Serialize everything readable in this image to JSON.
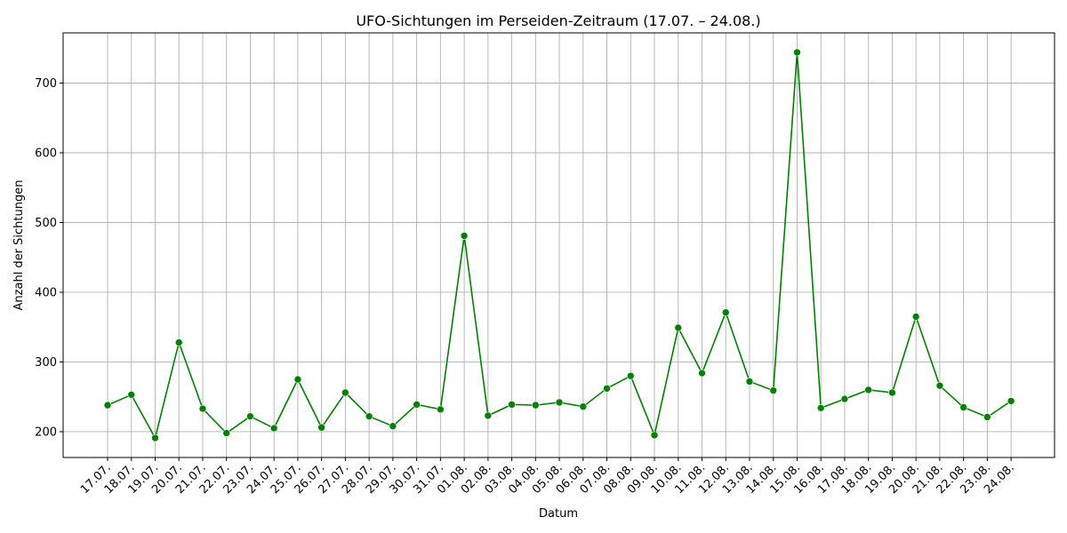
{
  "chart_data": {
    "type": "line",
    "title": "UFO-Sichtungen im Perseiden-Zeitraum (17.07. – 24.08.)",
    "xlabel": "Datum",
    "ylabel": "Anzahl der Sichtungen",
    "categories": [
      "17.07.",
      "18.07.",
      "19.07.",
      "20.07.",
      "21.07.",
      "22.07.",
      "23.07.",
      "24.07.",
      "25.07.",
      "26.07.",
      "27.07.",
      "28.07.",
      "29.07.",
      "30.07.",
      "31.07.",
      "01.08.",
      "02.08.",
      "03.08.",
      "04.08.",
      "05.08.",
      "06.08.",
      "07.08.",
      "08.08.",
      "09.08.",
      "10.08.",
      "11.08.",
      "12.08.",
      "13.08.",
      "14.08.",
      "15.08.",
      "16.08.",
      "17.08.",
      "18.08.",
      "19.08.",
      "20.08.",
      "21.08.",
      "22.08.",
      "23.08.",
      "24.08."
    ],
    "series": [
      {
        "values": [
          238,
          253,
          191,
          328,
          233,
          198,
          222,
          205,
          275,
          206,
          256,
          222,
          208,
          239,
          232,
          481,
          223,
          239,
          238,
          242,
          236,
          262,
          280,
          195,
          349,
          284,
          371,
          272,
          259,
          744,
          234,
          247,
          260,
          256,
          365,
          266,
          235,
          221,
          244
        ],
        "color": "#008000",
        "marker": "circle"
      }
    ],
    "yticks": [
      200,
      300,
      400,
      500,
      600,
      700
    ],
    "ylim": [
      163,
      772
    ],
    "grid": true,
    "x_tick_rotation": 45
  }
}
